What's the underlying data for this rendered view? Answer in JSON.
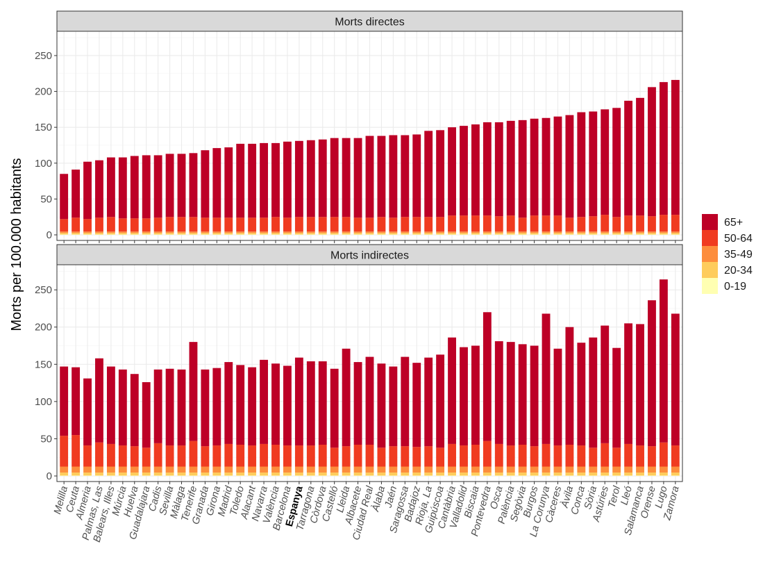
{
  "chart_data": {
    "type": "bar",
    "stacked": true,
    "ylabel": "Morts per 100.000 habitants",
    "ylim": [
      0,
      280
    ],
    "yticks": [
      0,
      50,
      100,
      150,
      200,
      250
    ],
    "highlight_category": "Espanya",
    "legend": [
      {
        "label": "65+",
        "color": "#bd0026"
      },
      {
        "label": "50-64",
        "color": "#f03b20"
      },
      {
        "label": "35-49",
        "color": "#fd8d3c"
      },
      {
        "label": "20-34",
        "color": "#fecc5c"
      },
      {
        "label": "0-19",
        "color": "#ffffb2"
      }
    ],
    "categories": [
      "Melilla",
      "Ceuta",
      "Almeria",
      "Palmas, Las",
      "Balears, Illes",
      "Múrcia",
      "Huelva",
      "Guadalajara",
      "Cadis",
      "Sevilla",
      "Màlaga",
      "Tenerife",
      "Granada",
      "Girona",
      "Madrid",
      "Toledo",
      "Alacant",
      "Navarra",
      "València",
      "Barcelona",
      "Espanya",
      "Tarragona",
      "Còrdova",
      "Castelló",
      "Lleida",
      "Albacete",
      "Ciudad Real",
      "Àlaba",
      "Jaén",
      "Saragossa",
      "Badajoz",
      "Rioja, La",
      "Guipúscoa",
      "Cantàbria",
      "Valladolid",
      "Biscaia",
      "Pontevedra",
      "Osca",
      "Palència",
      "Segòvia",
      "Burgos",
      "La Corunya",
      "Càceres",
      "Àvila",
      "Conca",
      "Sòria",
      "Astúries",
      "Terol",
      "Lleó",
      "Salamanca",
      "Orense",
      "Lugo",
      "Zamora"
    ],
    "panels": [
      {
        "title": "Morts directes",
        "totals": [
          85,
          91,
          102,
          104,
          108,
          108,
          110,
          111,
          111,
          113,
          113,
          114,
          118,
          121,
          122,
          127,
          127,
          128,
          128,
          130,
          131,
          132,
          133,
          135,
          135,
          135,
          138,
          138,
          139,
          139,
          140,
          145,
          146,
          150,
          152,
          154,
          157,
          157,
          159,
          160,
          162,
          163,
          165,
          167,
          171,
          172,
          175,
          177,
          187,
          191,
          206,
          213,
          216
        ],
        "seg_20_34": 2,
        "seg_35_49": 2,
        "seg_50_64_top": [
          22,
          24,
          22,
          24,
          25,
          23,
          23,
          23,
          24,
          25,
          25,
          25,
          24,
          24,
          24,
          24,
          24,
          24,
          25,
          24,
          25,
          25,
          25,
          25,
          25,
          24,
          24,
          25,
          24,
          25,
          25,
          25,
          25,
          27,
          27,
          27,
          27,
          26,
          27,
          24,
          27,
          27,
          27,
          24,
          25,
          26,
          28,
          25,
          27,
          27,
          26,
          28,
          28
        ]
      },
      {
        "title": "Morts indirectes",
        "totals": [
          147,
          146,
          131,
          158,
          147,
          143,
          137,
          126,
          143,
          144,
          143,
          180,
          143,
          145,
          153,
          149,
          146,
          156,
          151,
          148,
          159,
          154,
          154,
          144,
          171,
          153,
          160,
          151,
          147,
          160,
          152,
          159,
          163,
          186,
          173,
          175,
          220,
          181,
          180,
          177,
          175,
          218,
          171,
          200,
          179,
          186,
          202,
          172,
          205,
          204,
          236,
          264,
          218
        ],
        "seg_20_34": 4,
        "seg_35_49": 8,
        "seg_50_64_top": [
          54,
          55,
          41,
          45,
          43,
          41,
          40,
          38,
          44,
          41,
          41,
          47,
          40,
          41,
          43,
          42,
          41,
          43,
          42,
          41,
          41,
          41,
          42,
          38,
          40,
          42,
          42,
          38,
          40,
          40,
          39,
          40,
          38,
          43,
          41,
          42,
          47,
          43,
          41,
          42,
          40,
          43,
          41,
          42,
          41,
          38,
          44,
          38,
          43,
          41,
          40,
          45,
          41
        ]
      }
    ]
  }
}
